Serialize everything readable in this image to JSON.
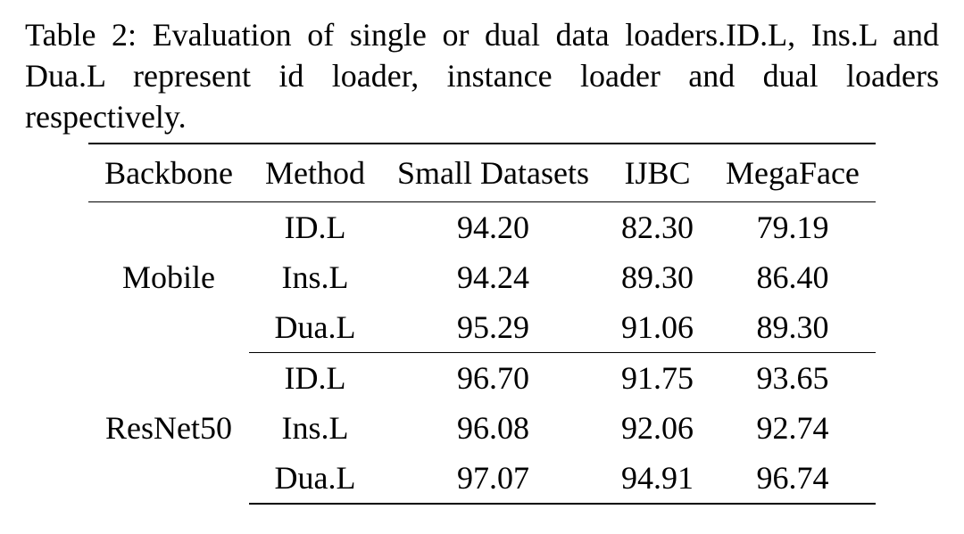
{
  "caption": {
    "prefix": "Table 2:",
    "body_parts": [
      "Evaluation of single or dual data loaders.ID.L,",
      "Ins.L and Dua.L represent id loader, instance loader and",
      "dual loaders respectively."
    ]
  },
  "table": {
    "type": "table",
    "font_family": "Times New Roman",
    "font_size_pt": 27,
    "text_color": "#000000",
    "background_color": "#ffffff",
    "rule_color": "#000000",
    "columns": [
      {
        "key": "backbone",
        "label": "Backbone",
        "align": "left"
      },
      {
        "key": "method",
        "label": "Method",
        "align": "left"
      },
      {
        "key": "small",
        "label": "Small Datasets",
        "align": "center"
      },
      {
        "key": "ijbc",
        "label": "IJBC",
        "align": "center"
      },
      {
        "key": "mega",
        "label": "MegaFace",
        "align": "center"
      }
    ],
    "groups": [
      {
        "backbone": "Mobile",
        "rows": [
          {
            "method": "ID.L",
            "small": "94.20",
            "ijbc": "82.30",
            "mega": "79.19",
            "bold": false
          },
          {
            "method": "Ins.L",
            "small": "94.24",
            "ijbc": "89.30",
            "mega": "86.40",
            "bold": false
          },
          {
            "method": "Dua.L",
            "small": "95.29",
            "ijbc": "91.06",
            "mega": "89.30",
            "bold": true
          }
        ]
      },
      {
        "backbone": "ResNet50",
        "rows": [
          {
            "method": "ID.L",
            "small": "96.70",
            "ijbc": "91.75",
            "mega": "93.65",
            "bold": false
          },
          {
            "method": "Ins.L",
            "small": "96.08",
            "ijbc": "92.06",
            "mega": "92.74",
            "bold": false
          },
          {
            "method": "Dua.L",
            "small": "97.07",
            "ijbc": "94.91",
            "mega": "96.74",
            "bold": true
          }
        ]
      }
    ]
  }
}
